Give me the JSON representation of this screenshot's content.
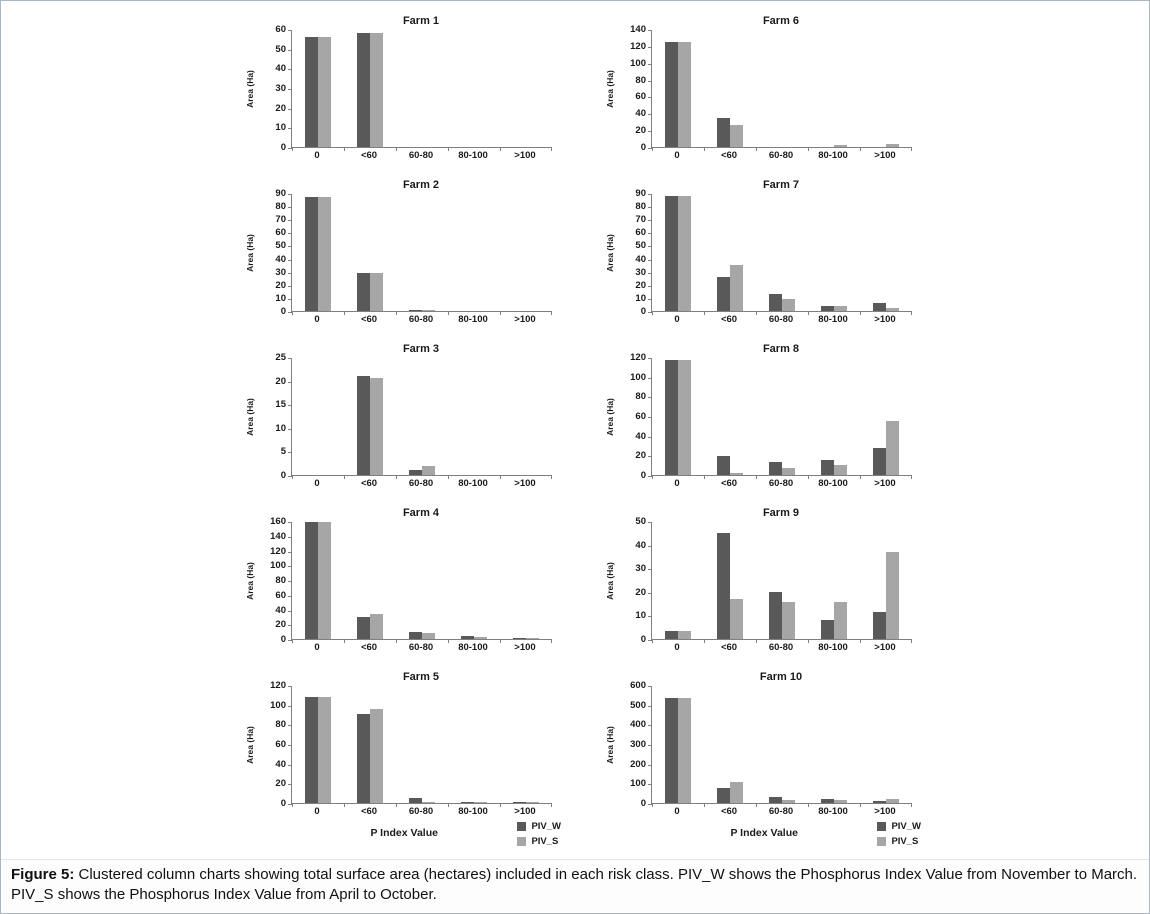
{
  "figure": {
    "caption_label": "Figure 5:",
    "caption_text": " Clustered column charts showing total surface area (hectares) included in each risk class. PIV_W shows the Phosphorus Index Value from November to March. PIV_S shows the Phosphorus Index Value from April to October.",
    "ylabel": "Area (Ha)",
    "xlabel": "P Index Value",
    "legend": [
      "PIV_W",
      "PIV_S"
    ],
    "colors": {
      "piv_w": "#595959",
      "piv_s": "#a6a6a6",
      "axis": "#7f7f7f"
    }
  },
  "chart_data": [
    {
      "type": "bar",
      "title": "Farm 1",
      "ylabel": "Area (Ha)",
      "categories": [
        "0",
        "<60",
        "60-80",
        "80-100",
        ">100"
      ],
      "series": [
        {
          "name": "PIV_W",
          "values": [
            56,
            58,
            0,
            0,
            0
          ]
        },
        {
          "name": "PIV_S",
          "values": [
            56,
            58,
            0,
            0,
            0
          ]
        }
      ],
      "ylim": [
        0,
        60
      ],
      "ytick": 10,
      "grid": false,
      "show_xlabel": false,
      "show_legend": false
    },
    {
      "type": "bar",
      "title": "Farm 2",
      "ylabel": "Area (Ha)",
      "categories": [
        "0",
        "<60",
        "60-80",
        "80-100",
        ">100"
      ],
      "series": [
        {
          "name": "PIV_W",
          "values": [
            87,
            29,
            0.5,
            0,
            0
          ]
        },
        {
          "name": "PIV_S",
          "values": [
            87,
            29,
            0.5,
            0,
            0
          ]
        }
      ],
      "ylim": [
        0,
        90
      ],
      "ytick": 10,
      "grid": false,
      "show_xlabel": false,
      "show_legend": false
    },
    {
      "type": "bar",
      "title": "Farm 3",
      "ylabel": "Area (Ha)",
      "categories": [
        "0",
        "<60",
        "60-80",
        "80-100",
        ">100"
      ],
      "series": [
        {
          "name": "PIV_W",
          "values": [
            0,
            21,
            1,
            0,
            0
          ]
        },
        {
          "name": "PIV_S",
          "values": [
            0,
            20.5,
            2,
            0,
            0
          ]
        }
      ],
      "ylim": [
        0,
        25
      ],
      "ytick": 5,
      "grid": false,
      "show_xlabel": false,
      "show_legend": false
    },
    {
      "type": "bar",
      "title": "Farm 4",
      "ylabel": "Area (Ha)",
      "categories": [
        "0",
        "<60",
        "60-80",
        "80-100",
        ">100"
      ],
      "series": [
        {
          "name": "PIV_W",
          "values": [
            158,
            30,
            10,
            4,
            2
          ]
        },
        {
          "name": "PIV_S",
          "values": [
            158,
            34,
            8,
            3,
            2
          ]
        }
      ],
      "ylim": [
        0,
        160
      ],
      "ytick": 20,
      "grid": false,
      "show_xlabel": false,
      "show_legend": false
    },
    {
      "type": "bar",
      "title": "Farm 5",
      "ylabel": "Area (Ha)",
      "xlabel": "P Index Value",
      "categories": [
        "0",
        "<60",
        "60-80",
        "80-100",
        ">100"
      ],
      "series": [
        {
          "name": "PIV_W",
          "values": [
            108,
            91,
            5,
            1,
            1
          ]
        },
        {
          "name": "PIV_S",
          "values": [
            108,
            96,
            1,
            1,
            1
          ]
        }
      ],
      "ylim": [
        0,
        120
      ],
      "ytick": 20,
      "grid": false,
      "show_xlabel": true,
      "show_legend": true
    },
    {
      "type": "bar",
      "title": "Farm 6",
      "ylabel": "Area (Ha)",
      "categories": [
        "0",
        "<60",
        "60-80",
        "80-100",
        ">100"
      ],
      "series": [
        {
          "name": "PIV_W",
          "values": [
            125,
            35,
            0,
            0,
            0
          ]
        },
        {
          "name": "PIV_S",
          "values": [
            125,
            26,
            0,
            2,
            4
          ]
        }
      ],
      "ylim": [
        0,
        140
      ],
      "ytick": 20,
      "grid": false,
      "show_xlabel": false,
      "show_legend": false
    },
    {
      "type": "bar",
      "title": "Farm 7",
      "ylabel": "Area (Ha)",
      "categories": [
        "0",
        "<60",
        "60-80",
        "80-100",
        ">100"
      ],
      "series": [
        {
          "name": "PIV_W",
          "values": [
            88,
            26,
            13,
            4,
            6
          ]
        },
        {
          "name": "PIV_S",
          "values": [
            88,
            35,
            9,
            4,
            2
          ]
        }
      ],
      "ylim": [
        0,
        90
      ],
      "ytick": 10,
      "grid": false,
      "show_xlabel": false,
      "show_legend": false
    },
    {
      "type": "bar",
      "title": "Farm 8",
      "ylabel": "Area (Ha)",
      "categories": [
        "0",
        "<60",
        "60-80",
        "80-100",
        ">100"
      ],
      "series": [
        {
          "name": "PIV_W",
          "values": [
            117,
            19,
            13,
            15,
            27
          ]
        },
        {
          "name": "PIV_S",
          "values": [
            117,
            2,
            7,
            10,
            55
          ]
        }
      ],
      "ylim": [
        0,
        120
      ],
      "ytick": 20,
      "grid": false,
      "show_xlabel": false,
      "show_legend": false
    },
    {
      "type": "bar",
      "title": "Farm 9",
      "ylabel": "Area (Ha)",
      "categories": [
        "0",
        "<60",
        "60-80",
        "80-100",
        ">100"
      ],
      "series": [
        {
          "name": "PIV_W",
          "values": [
            3.5,
            45,
            20,
            8,
            11.5
          ]
        },
        {
          "name": "PIV_S",
          "values": [
            3.5,
            17,
            15.5,
            15.5,
            37
          ]
        }
      ],
      "ylim": [
        0,
        50
      ],
      "ytick": 10,
      "grid": false,
      "show_xlabel": false,
      "show_legend": false
    },
    {
      "type": "bar",
      "title": "Farm 10",
      "ylabel": "Area (Ha)",
      "xlabel": "P Index Value",
      "categories": [
        "0",
        "<60",
        "60-80",
        "80-100",
        ">100"
      ],
      "series": [
        {
          "name": "PIV_W",
          "values": [
            535,
            75,
            30,
            20,
            8
          ]
        },
        {
          "name": "PIV_S",
          "values": [
            535,
            105,
            15,
            15,
            18
          ]
        }
      ],
      "ylim": [
        0,
        600
      ],
      "ytick": 100,
      "grid": false,
      "show_xlabel": true,
      "show_legend": true
    }
  ]
}
